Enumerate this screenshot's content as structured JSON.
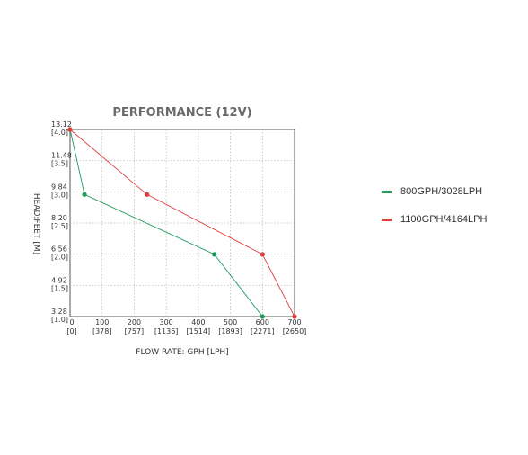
{
  "chart_data": {
    "type": "line",
    "title": "PERFORMANCE (12V)",
    "xlabel": "FLOW RATE: GPH [LPH]",
    "ylabel": "HEAD:FEET [M]",
    "xlim": [
      0,
      700
    ],
    "ylim": [
      3.28,
      13.12
    ],
    "grid": true,
    "legend_position": "right",
    "x_ticks": [
      {
        "value": 0,
        "label": "0",
        "sublabel": "[0]"
      },
      {
        "value": 100,
        "label": "100",
        "sublabel": "[378]"
      },
      {
        "value": 200,
        "label": "200",
        "sublabel": "[757]"
      },
      {
        "value": 300,
        "label": "300",
        "sublabel": "[1136]"
      },
      {
        "value": 400,
        "label": "400",
        "sublabel": "[1514]"
      },
      {
        "value": 500,
        "label": "500",
        "sublabel": "[1893]"
      },
      {
        "value": 600,
        "label": "600",
        "sublabel": "[2271]"
      },
      {
        "value": 700,
        "label": "700",
        "sublabel": "[2650]"
      }
    ],
    "y_ticks": [
      {
        "value": 3.28,
        "label": "3.28",
        "sublabel": "[1.0]"
      },
      {
        "value": 4.92,
        "label": "4.92",
        "sublabel": "[1.5]"
      },
      {
        "value": 6.56,
        "label": "6.56",
        "sublabel": "[2.0]"
      },
      {
        "value": 8.2,
        "label": "8.20",
        "sublabel": "[2.5]"
      },
      {
        "value": 9.84,
        "label": "9.84",
        "sublabel": "[3.0]"
      },
      {
        "value": 11.48,
        "label": "11.48",
        "sublabel": "[3.5]"
      },
      {
        "value": 13.12,
        "label": "13.12",
        "sublabel": "[4.0]"
      }
    ],
    "series": [
      {
        "name": "800GPH/3028LPH",
        "color": "#1e9a5c",
        "points": [
          [
            0,
            13.12
          ],
          [
            45,
            9.7
          ],
          [
            450,
            6.55
          ],
          [
            600,
            3.28
          ]
        ]
      },
      {
        "name": "1100GPH/4164LPH",
        "color": "#e03c3c",
        "points": [
          [
            0,
            13.12
          ],
          [
            240,
            9.7
          ],
          [
            600,
            6.55
          ],
          [
            700,
            3.28
          ]
        ]
      }
    ]
  }
}
